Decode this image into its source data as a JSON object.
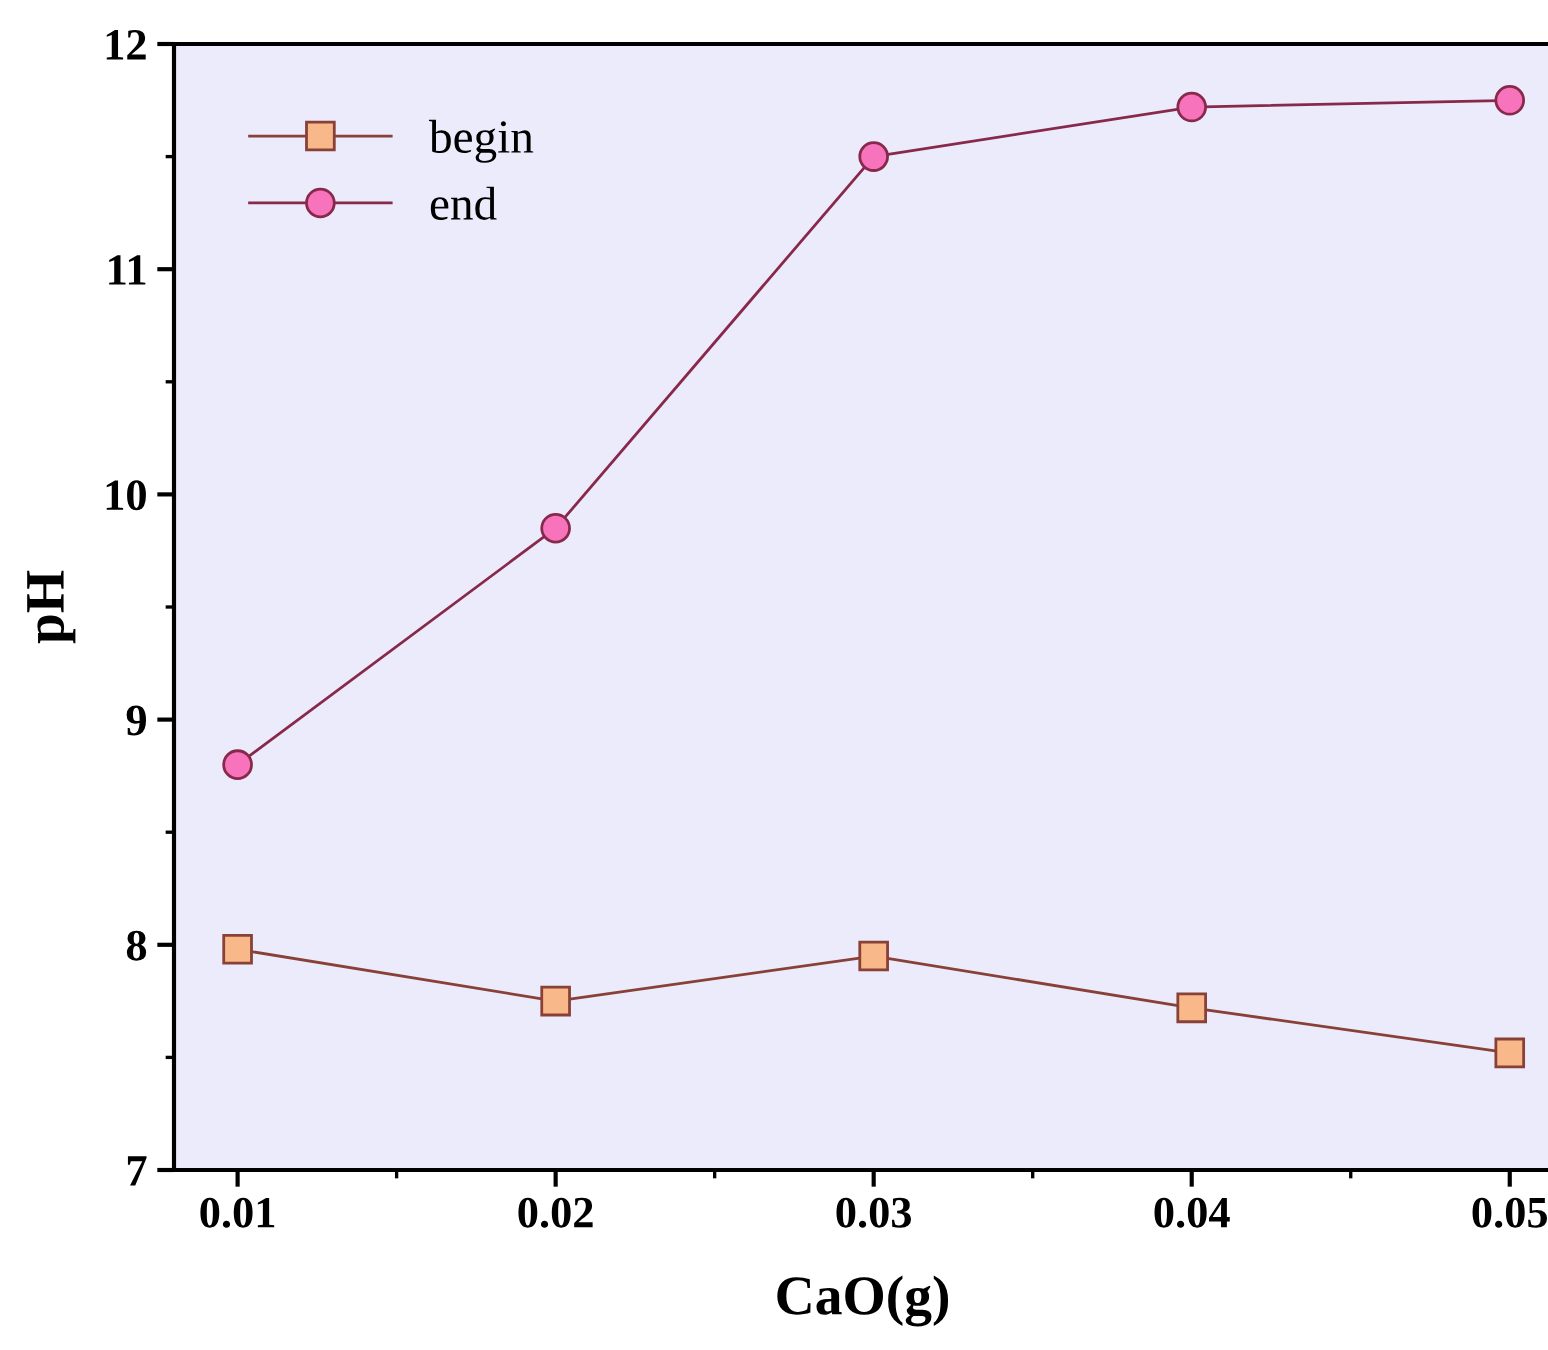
{
  "chart_data": {
    "type": "line",
    "xlabel": "CaO(g)",
    "ylabel": "pH",
    "x": [
      0.01,
      0.02,
      0.03,
      0.04,
      0.05
    ],
    "xlim": [
      0.008,
      0.0513
    ],
    "xticks": [
      0.01,
      0.02,
      0.03,
      0.04,
      0.05
    ],
    "ylim": [
      7,
      12
    ],
    "yticks": [
      7,
      8,
      9,
      10,
      11,
      12
    ],
    "grid": false,
    "legend": "top left",
    "line_style": "solid",
    "series": [
      {
        "name": "begin",
        "color": "#f8b889",
        "marker": "square",
        "values": [
          7.98,
          7.75,
          7.95,
          7.72,
          7.52
        ]
      },
      {
        "name": "end",
        "color": "#f774bd",
        "marker": "circle",
        "values": [
          8.8,
          9.85,
          11.5,
          11.72,
          11.75
        ]
      }
    ]
  }
}
